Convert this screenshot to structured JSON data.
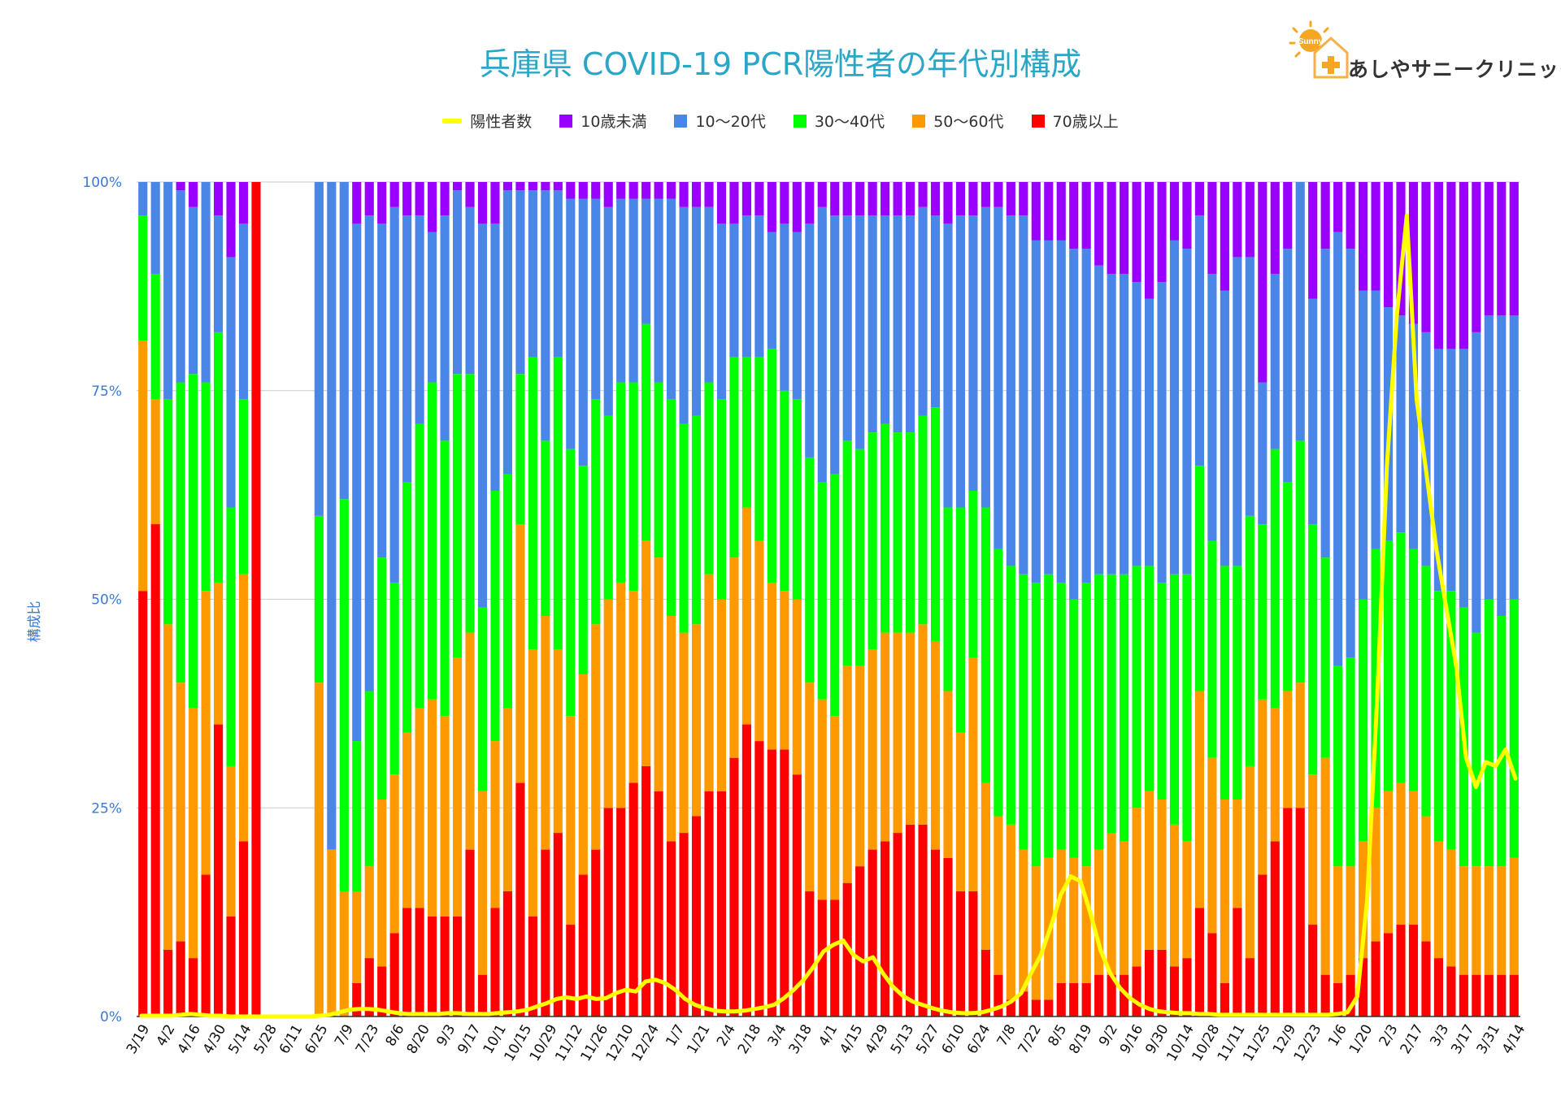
{
  "title": "兵庫県  COVID-19 PCR陽性者の年代別構成",
  "logo": {
    "badge_text": "Sunny",
    "text": "あしやサニークリニック",
    "colors": {
      "sun": "#f5a623",
      "cross": "#f5a623",
      "house": "#f5b04a"
    }
  },
  "legend": [
    {
      "label": "陽性者数",
      "color": "#ffff00",
      "kind": "line"
    },
    {
      "label": "10歳未満",
      "color": "#9900ff",
      "kind": "box"
    },
    {
      "label": "10～20代",
      "color": "#4a86e8",
      "kind": "box"
    },
    {
      "label": "30～40代",
      "color": "#00ff00",
      "kind": "box"
    },
    {
      "label": "50～60代",
      "color": "#ff9900",
      "kind": "box"
    },
    {
      "label": "70歳以上",
      "color": "#ff0000",
      "kind": "box"
    }
  ],
  "chart_data": {
    "type": "bar",
    "stacked": true,
    "ylabel": "構成比",
    "ylim": [
      0,
      100
    ],
    "yticks": [
      "0%",
      "25%",
      "50%",
      "75%",
      "100%"
    ],
    "tick_labels": [
      "3/19",
      "4/2",
      "4/16",
      "4/30",
      "5/14",
      "5/28",
      "6/11",
      "6/25",
      "7/9",
      "7/23",
      "8/6",
      "8/20",
      "9/3",
      "9/17",
      "10/1",
      "10/15",
      "10/29",
      "11/12",
      "11/26",
      "12/10",
      "12/24",
      "1/7",
      "1/21",
      "2/4",
      "2/18",
      "3/4",
      "3/18",
      "4/1",
      "4/15",
      "4/29",
      "5/13",
      "5/27",
      "6/10",
      "6/24",
      "7/8",
      "7/22",
      "8/5",
      "8/19",
      "9/2",
      "9/16",
      "9/30",
      "10/14",
      "10/28",
      "11/11",
      "11/25",
      "12/9",
      "12/23",
      "1/6",
      "1/20",
      "2/3",
      "2/17",
      "3/3",
      "3/17",
      "3/31",
      "4/14"
    ],
    "series_colors": [
      "#ff0000",
      "#ff9900",
      "#00ff00",
      "#4a86e8",
      "#9900ff"
    ],
    "line_color": "#ffff00",
    "bars": [
      [
        51,
        30,
        15,
        4,
        0
      ],
      [
        59,
        15,
        15,
        11,
        0
      ],
      [
        8,
        39,
        27,
        26,
        0
      ],
      [
        9,
        31,
        36,
        23,
        1
      ],
      [
        7,
        30,
        40,
        20,
        3
      ],
      [
        17,
        34,
        25,
        24,
        0
      ],
      [
        35,
        17,
        30,
        14,
        4
      ],
      [
        12,
        18,
        31,
        30,
        9
      ],
      [
        21,
        32,
        21,
        21,
        5
      ],
      [
        100,
        0,
        0,
        0,
        0
      ],
      null,
      null,
      null,
      null,
      [
        0,
        40,
        20,
        40,
        0
      ],
      [
        0,
        20,
        0,
        80,
        0
      ],
      [
        0,
        15,
        47,
        38,
        0
      ],
      [
        4,
        11,
        18,
        62,
        5
      ],
      [
        7,
        11,
        21,
        57,
        4
      ],
      [
        6,
        20,
        29,
        40,
        5
      ],
      [
        10,
        19,
        23,
        45,
        3
      ],
      [
        13,
        21,
        30,
        32,
        4
      ],
      [
        13,
        24,
        34,
        25,
        4
      ],
      [
        12,
        26,
        38,
        18,
        6
      ],
      [
        12,
        24,
        33,
        27,
        4
      ],
      [
        12,
        31,
        34,
        22,
        1
      ],
      [
        20,
        26,
        31,
        20,
        3
      ],
      [
        5,
        22,
        22,
        46,
        5
      ],
      [
        13,
        20,
        30,
        32,
        5
      ],
      [
        15,
        22,
        28,
        34,
        1
      ],
      [
        28,
        31,
        18,
        22,
        1
      ],
      [
        12,
        32,
        35,
        20,
        1
      ],
      [
        20,
        28,
        21,
        30,
        1
      ],
      [
        22,
        22,
        35,
        20,
        1
      ],
      [
        11,
        25,
        32,
        30,
        2
      ],
      [
        17,
        24,
        25,
        32,
        2
      ],
      [
        20,
        27,
        27,
        24,
        2
      ],
      [
        25,
        25,
        22,
        25,
        3
      ],
      [
        25,
        27,
        24,
        22,
        2
      ],
      [
        28,
        23,
        25,
        22,
        2
      ],
      [
        30,
        27,
        26,
        15,
        2
      ],
      [
        27,
        28,
        21,
        22,
        2
      ],
      [
        21,
        27,
        26,
        24,
        2
      ],
      [
        22,
        24,
        25,
        26,
        3
      ],
      [
        24,
        23,
        25,
        25,
        3
      ],
      [
        27,
        26,
        23,
        21,
        3
      ],
      [
        27,
        23,
        24,
        21,
        5
      ],
      [
        31,
        24,
        24,
        16,
        5
      ],
      [
        35,
        26,
        18,
        17,
        4
      ],
      [
        33,
        24,
        22,
        17,
        4
      ],
      [
        32,
        20,
        28,
        14,
        6
      ],
      [
        32,
        19,
        24,
        20,
        5
      ],
      [
        29,
        21,
        24,
        20,
        6
      ],
      [
        15,
        25,
        27,
        28,
        5
      ],
      [
        14,
        24,
        26,
        33,
        3
      ],
      [
        14,
        22,
        29,
        31,
        4
      ],
      [
        16,
        26,
        27,
        27,
        4
      ],
      [
        18,
        24,
        26,
        28,
        4
      ],
      [
        20,
        24,
        26,
        26,
        4
      ],
      [
        21,
        25,
        25,
        25,
        4
      ],
      [
        22,
        24,
        24,
        26,
        4
      ],
      [
        23,
        23,
        24,
        26,
        4
      ],
      [
        23,
        24,
        25,
        25,
        3
      ],
      [
        20,
        25,
        28,
        23,
        4
      ],
      [
        19,
        20,
        22,
        34,
        5
      ],
      [
        15,
        19,
        27,
        35,
        4
      ],
      [
        15,
        28,
        20,
        33,
        4
      ],
      [
        8,
        20,
        33,
        36,
        3
      ],
      [
        5,
        19,
        32,
        41,
        3
      ],
      [
        2,
        21,
        31,
        42,
        4
      ],
      [
        3,
        17,
        33,
        43,
        4
      ],
      [
        2,
        16,
        34,
        41,
        7
      ],
      [
        2,
        17,
        34,
        40,
        7
      ],
      [
        4,
        16,
        32,
        41,
        7
      ],
      [
        4,
        15,
        31,
        42,
        8
      ],
      [
        4,
        14,
        34,
        40,
        8
      ],
      [
        5,
        15,
        33,
        37,
        10
      ],
      [
        5,
        17,
        31,
        36,
        11
      ],
      [
        5,
        16,
        32,
        36,
        11
      ],
      [
        6,
        19,
        29,
        34,
        12
      ],
      [
        8,
        19,
        27,
        32,
        14
      ],
      [
        8,
        18,
        26,
        36,
        12
      ],
      [
        6,
        17,
        30,
        40,
        7
      ],
      [
        7,
        14,
        32,
        39,
        8
      ],
      [
        13,
        26,
        27,
        30,
        4
      ],
      [
        10,
        21,
        26,
        32,
        11
      ],
      [
        4,
        22,
        28,
        33,
        13
      ],
      [
        13,
        13,
        28,
        37,
        9
      ],
      [
        7,
        23,
        30,
        31,
        9
      ],
      [
        17,
        21,
        21,
        17,
        24
      ],
      [
        21,
        16,
        31,
        21,
        11
      ],
      [
        25,
        14,
        25,
        28,
        8
      ],
      [
        25,
        15,
        29,
        31,
        0
      ],
      [
        11,
        18,
        30,
        27,
        14
      ],
      [
        5,
        26,
        24,
        37,
        8
      ],
      [
        4,
        14,
        24,
        52,
        6
      ],
      [
        5,
        13,
        25,
        49,
        8
      ],
      [
        7,
        14,
        29,
        37,
        13
      ],
      [
        9,
        16,
        31,
        31,
        13
      ],
      [
        10,
        17,
        30,
        28,
        15
      ],
      [
        11,
        17,
        30,
        26,
        16
      ],
      [
        11,
        16,
        29,
        27,
        17
      ],
      [
        9,
        15,
        30,
        28,
        18
      ],
      [
        7,
        14,
        30,
        29,
        20
      ],
      [
        6,
        14,
        31,
        29,
        20
      ],
      [
        5,
        13,
        31,
        31,
        20
      ],
      [
        5,
        13,
        28,
        36,
        18
      ],
      [
        5,
        13,
        32,
        34,
        16
      ],
      [
        5,
        13,
        30,
        36,
        16
      ],
      [
        5,
        14,
        31,
        34,
        16
      ]
    ],
    "line": [
      0.1,
      0.1,
      0.1,
      0.1,
      0.2,
      0.3,
      0.2,
      0.1,
      0.1,
      0,
      0,
      0,
      0,
      0,
      0,
      0,
      0,
      0,
      0.1,
      0.2,
      0.5,
      0.8,
      0.9,
      0.9,
      0.8,
      0.6,
      0.4,
      0.3,
      0.3,
      0.3,
      0.3,
      0.4,
      0.4,
      0.3,
      0.3,
      0.3,
      0.4,
      0.5,
      0.6,
      0.8,
      1.2,
      1.6,
      2.1,
      2.3,
      2.1,
      2.4,
      2.1,
      2.2,
      2.8,
      3.2,
      3.0,
      4.2,
      4.4,
      4.0,
      3.2,
      2.1,
      1.4,
      1.0,
      0.7,
      0.6,
      0.6,
      0.7,
      0.9,
      1.1,
      1.4,
      2.2,
      3.2,
      4.4,
      6.0,
      7.8,
      8.6,
      9.1,
      7.4,
      6.6,
      7.1,
      5.2,
      3.6,
      2.5,
      1.8,
      1.4,
      1.0,
      0.7,
      0.5,
      0.4,
      0.4,
      0.5,
      0.8,
      1.2,
      1.8,
      2.8,
      5.2,
      7.4,
      10.8,
      14.6,
      16.8,
      16.2,
      12.4,
      8.0,
      5.2,
      3.4,
      2.2,
      1.4,
      0.9,
      0.6,
      0.5,
      0.4,
      0.4,
      0.3,
      0.3,
      0.2,
      0.2,
      0.2,
      0.2,
      0.2,
      0.2,
      0.2,
      0.2,
      0.2,
      0.2,
      0.2,
      0.2,
      0.3,
      0.5,
      2.4,
      14.0,
      38.0,
      66.0,
      84.0,
      96.0,
      74.0,
      65.0,
      56.0,
      49.0,
      42.0,
      31.0,
      27.5,
      30.5,
      30.0,
      32.0,
      28.5
    ]
  }
}
